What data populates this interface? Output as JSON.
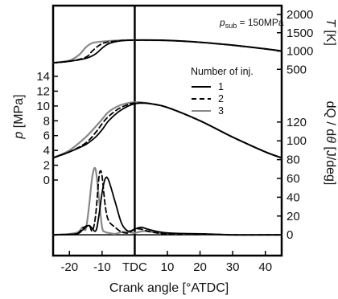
{
  "chart_data": {
    "type": "line",
    "xlabel": "Crank angle [°ATDC]",
    "x_ticks": [
      "-20",
      "-10",
      "TDC",
      "10",
      "20",
      "30",
      "40"
    ],
    "x_tick_values": [
      -20,
      -10,
      0,
      10,
      20,
      30,
      40
    ],
    "xlim": [
      -25,
      45
    ],
    "annotation_parts": [
      "p",
      "sub",
      " = 150MPa"
    ],
    "legend": {
      "title": "Number of inj.",
      "position": "top-right"
    },
    "panels": [
      {
        "quantity": "T",
        "ylabel_parts": [
          "T",
          " [K]"
        ],
        "axis_side": "right",
        "ylim": [
          0,
          2000
        ],
        "ticks": [
          "500",
          "1000",
          "1500",
          "2000"
        ],
        "tick_values": [
          500,
          1000,
          1500,
          2000
        ],
        "series": [
          {
            "name": "1",
            "color": "#000000",
            "dash": "solid",
            "x": [
              -25,
              -20,
              -15,
              -12,
              -10,
              -8,
              -5,
              0,
              10,
              20,
              30,
              40,
              45
            ],
            "y": [
              680,
              720,
              800,
              920,
              1080,
              1200,
              1270,
              1300,
              1290,
              1240,
              1160,
              1060,
              1000
            ]
          },
          {
            "name": "2",
            "color": "#000000",
            "dash": "dashed",
            "x": [
              -25,
              -20,
              -15,
              -13,
              -11,
              -9,
              -5,
              0,
              10,
              20,
              30,
              40,
              45
            ],
            "y": [
              680,
              720,
              830,
              1000,
              1150,
              1230,
              1280,
              1300,
              1290,
              1240,
              1160,
              1060,
              1000
            ]
          },
          {
            "name": "3",
            "color": "#888888",
            "dash": "solid",
            "x": [
              -25,
              -20,
              -17,
              -15,
              -13,
              -10,
              -5,
              0,
              10,
              20,
              30,
              40,
              45
            ],
            "y": [
              680,
              740,
              900,
              1100,
              1220,
              1260,
              1290,
              1300,
              1290,
              1240,
              1160,
              1060,
              1000
            ]
          }
        ]
      },
      {
        "quantity": "p",
        "ylabel_parts": [
          "p",
          " [MPa]"
        ],
        "axis_side": "left",
        "ylim": [
          0,
          14
        ],
        "ticks": [
          "0",
          "2",
          "4",
          "6",
          "8",
          "10",
          "12",
          "14"
        ],
        "tick_values": [
          0,
          2,
          4,
          6,
          8,
          10,
          12,
          14
        ],
        "series": [
          {
            "name": "1",
            "color": "#000000",
            "dash": "solid",
            "x": [
              -25,
              -20,
              -15,
              -12,
              -10,
              -8,
              -5,
              -2,
              0,
              2,
              5,
              10,
              20,
              30,
              40,
              45
            ],
            "y": [
              3.0,
              3.8,
              4.8,
              5.8,
              6.8,
              8.0,
              9.2,
              10.0,
              10.3,
              10.4,
              10.3,
              9.8,
              8.0,
              5.8,
              3.8,
              3.0
            ]
          },
          {
            "name": "2",
            "color": "#000000",
            "dash": "dashed",
            "x": [
              -25,
              -20,
              -15,
              -12,
              -10,
              -8,
              -5,
              -2,
              0,
              2,
              5,
              10,
              20,
              30,
              40,
              45
            ],
            "y": [
              3.0,
              3.8,
              5.0,
              6.4,
              7.6,
              8.6,
              9.6,
              10.2,
              10.4,
              10.4,
              10.3,
              9.8,
              8.0,
              5.8,
              3.8,
              3.0
            ]
          },
          {
            "name": "3",
            "color": "#888888",
            "dash": "solid",
            "x": [
              -25,
              -20,
              -15,
              -12,
              -10,
              -8,
              -5,
              -2,
              0,
              2,
              5,
              10,
              20,
              30,
              40,
              45
            ],
            "y": [
              3.0,
              4.0,
              5.8,
              7.2,
              8.2,
              9.2,
              10.0,
              10.4,
              10.5,
              10.5,
              10.3,
              9.8,
              8.0,
              5.8,
              3.8,
              3.0
            ]
          }
        ]
      },
      {
        "quantity": "dQ/dθ",
        "ylabel_parts": [
          "dQ / d",
          "θ",
          " [J/deg]"
        ],
        "axis_side": "right",
        "ylim": [
          -5,
          125
        ],
        "ticks": [
          "0",
          "20",
          "40",
          "60",
          "80",
          "100",
          "120"
        ],
        "tick_values": [
          0,
          20,
          40,
          60,
          80,
          100,
          120
        ],
        "series": [
          {
            "name": "1",
            "color": "#000000",
            "dash": "solid",
            "x": [
              -25,
              -18,
              -16,
              -14,
              -12,
              -11,
              -10,
              -9,
              -8,
              -6,
              -4,
              -2,
              0,
              2,
              5,
              10,
              20,
              30,
              40,
              45
            ],
            "y": [
              0,
              1,
              5,
              10,
              4,
              20,
              45,
              60,
              58,
              35,
              12,
              4,
              6,
              8,
              5,
              2,
              1,
              0,
              0,
              0
            ]
          },
          {
            "name": "2",
            "color": "#000000",
            "dash": "dashed",
            "x": [
              -25,
              -18,
              -16,
              -14,
              -13,
              -12,
              -11,
              -10.5,
              -10,
              -9,
              -8,
              -6,
              -4,
              -2,
              0,
              2,
              5,
              10,
              20,
              30,
              40,
              45
            ],
            "y": [
              0,
              1,
              7,
              10,
              4,
              20,
              60,
              68,
              62,
              30,
              15,
              8,
              3,
              2,
              6,
              6,
              3,
              1,
              1,
              0,
              0,
              0
            ]
          },
          {
            "name": "3",
            "color": "#888888",
            "dash": "solid",
            "x": [
              -25,
              -18,
              -16,
              -15,
              -14,
              -13,
              -12,
              -11,
              -10,
              -9,
              -8,
              -6,
              -4,
              -2,
              0,
              3,
              8,
              15,
              20,
              30,
              40,
              45
            ],
            "y": [
              0,
              2,
              8,
              6,
              30,
              62,
              70,
              40,
              8,
              3,
              2,
              1,
              3,
              3,
              2,
              4,
              2,
              1,
              1,
              0,
              0,
              0
            ]
          }
        ]
      }
    ]
  }
}
